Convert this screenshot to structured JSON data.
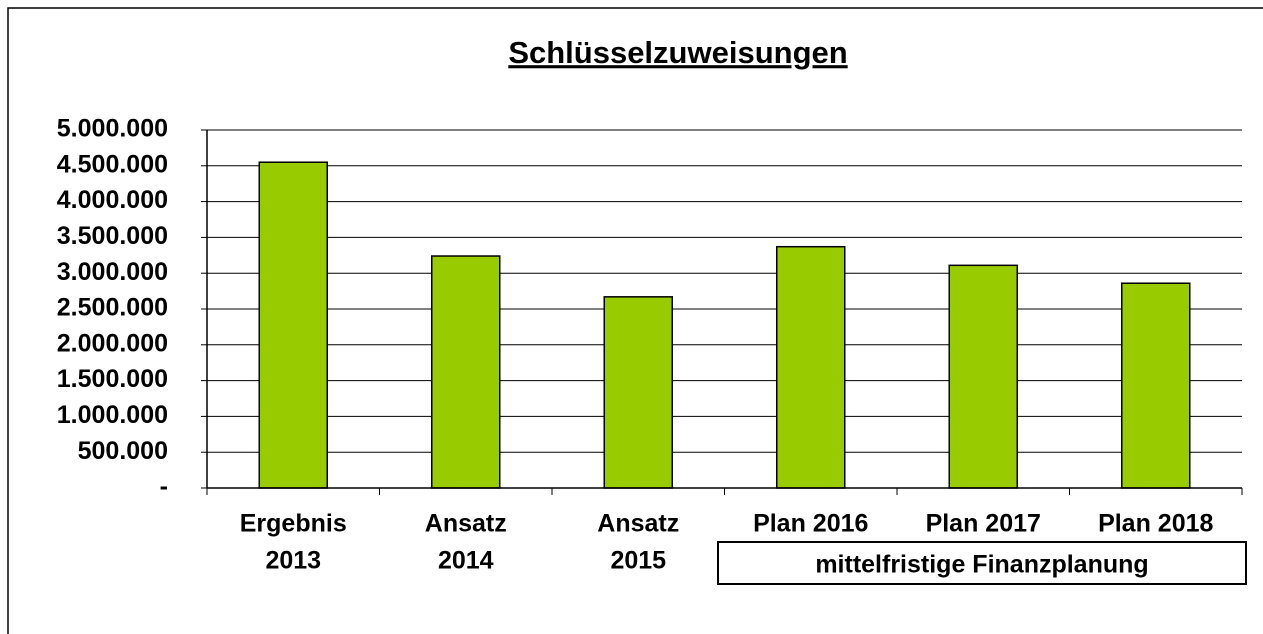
{
  "chart_data": {
    "type": "bar",
    "title": "Schlüsselzuweisungen",
    "categories": [
      [
        "Ergebnis",
        "2013"
      ],
      [
        "Ansatz",
        "2014"
      ],
      [
        "Ansatz",
        "2015"
      ],
      [
        "Plan 2016"
      ],
      [
        "Plan 2017"
      ],
      [
        "Plan 2018"
      ]
    ],
    "values": [
      4550000,
      3240000,
      2670000,
      3370000,
      3110000,
      2860000
    ],
    "color": "#99cc00",
    "ylim": [
      0,
      5000000
    ],
    "yticks": [
      {
        "value": 0,
        "label": "-"
      },
      {
        "value": 500000,
        "label": "500.000"
      },
      {
        "value": 1000000,
        "label": "1.000.000"
      },
      {
        "value": 1500000,
        "label": "1.500.000"
      },
      {
        "value": 2000000,
        "label": "2.000.000"
      },
      {
        "value": 2500000,
        "label": "2.500.000"
      },
      {
        "value": 3000000,
        "label": "3.000.000"
      },
      {
        "value": 3500000,
        "label": "3.500.000"
      },
      {
        "value": 4000000,
        "label": "4.000.000"
      },
      {
        "value": 4500000,
        "label": "4.500.000"
      },
      {
        "value": 5000000,
        "label": "5.000.000"
      }
    ],
    "grid": true,
    "annotation": "mittelfristige Finanzplanung"
  }
}
